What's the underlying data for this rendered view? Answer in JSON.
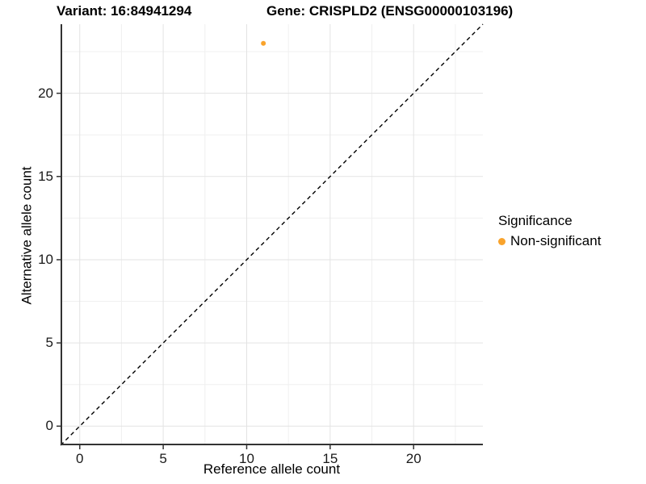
{
  "header": {
    "variant_title": "Variant: 16:84941294",
    "gene_title": "Gene: CRISPLD2 (ENSG00000103196)"
  },
  "chart_data": {
    "type": "scatter",
    "title": "Variant: 16:84941294 — Gene: CRISPLD2 (ENSG00000103196)",
    "xlabel": "Reference allele count",
    "ylabel": "Alternative allele count",
    "x_ticks": [
      0,
      5,
      10,
      15,
      20
    ],
    "y_ticks": [
      0,
      5,
      10,
      15,
      20
    ],
    "x_minor_ticks": [
      2.5,
      7.5,
      12.5,
      17.5,
      22.5
    ],
    "y_minor_ticks": [
      2.5,
      7.5,
      12.5,
      17.5,
      22.5
    ],
    "x_domain": [
      -1.15,
      24.15
    ],
    "y_domain": [
      -1.15,
      24.15
    ],
    "grid": "major+minor",
    "series": [
      {
        "name": "Non-significant",
        "points": [
          {
            "x": 11,
            "y": 23
          }
        ]
      }
    ],
    "reference_line": {
      "type": "identity",
      "slope": 1,
      "intercept": 0,
      "style": "dashed"
    },
    "legend": {
      "title": "Significance",
      "position": "right",
      "entries": [
        {
          "label": "Non-significant",
          "color": "#F9A32C"
        }
      ]
    },
    "colors": {
      "point": "#F9A32C",
      "grid_major": "#E3E3E3",
      "grid_minor": "#F0F0F0",
      "axis_line": "#333333",
      "tick_mark": "#333333",
      "reference_line": "#000000",
      "text": "#000000",
      "background": "#FFFFFF"
    }
  }
}
